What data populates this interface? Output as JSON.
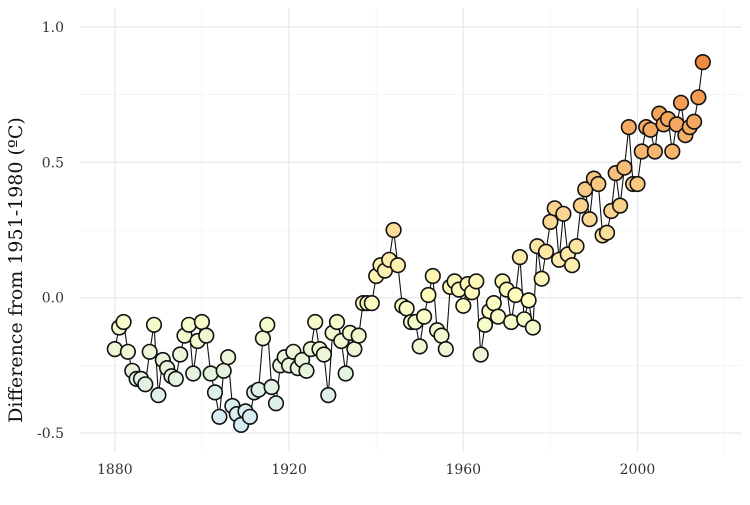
{
  "chart_data": {
    "type": "scatter",
    "connected": true,
    "title": "",
    "xlabel": "",
    "ylabel": "Difference from 1951-1980 (ºC)",
    "xlim": [
      1872,
      2024
    ],
    "ylim": [
      -0.57,
      1.07
    ],
    "x_ticks": [
      1880,
      1920,
      1960,
      2000
    ],
    "y_ticks": [
      -0.5,
      0.0,
      0.5,
      1.0
    ],
    "y_tick_labels": [
      "-0.5",
      "0.0",
      "0.5",
      "1.0"
    ],
    "grid": true,
    "legend": "none",
    "color_scale": {
      "low": "#d4ecf5",
      "mid": "#ffffc0",
      "high": "#f08a3e",
      "domain": [
        -0.47,
        0.0,
        0.87
      ]
    },
    "series": [
      {
        "x": [
          1880,
          1881,
          1882,
          1883,
          1884,
          1885,
          1886,
          1887,
          1888,
          1889,
          1890,
          1891,
          1892,
          1893,
          1894,
          1895,
          1896,
          1897,
          1898,
          1899,
          1900,
          1901,
          1902,
          1903,
          1904,
          1905,
          1906,
          1907,
          1908,
          1909,
          1910,
          1911,
          1912,
          1913,
          1914,
          1915,
          1916,
          1917,
          1918,
          1919,
          1920,
          1921,
          1922,
          1923,
          1924,
          1925,
          1926,
          1927,
          1928,
          1929,
          1930,
          1931,
          1932,
          1933,
          1934,
          1935,
          1936,
          1937,
          1938,
          1939,
          1940,
          1941,
          1942,
          1943,
          1944,
          1945,
          1946,
          1947,
          1948,
          1949,
          1950,
          1951,
          1952,
          1953,
          1954,
          1955,
          1956,
          1957,
          1958,
          1959,
          1960,
          1961,
          1962,
          1963,
          1964,
          1965,
          1966,
          1967,
          1968,
          1969,
          1970,
          1971,
          1972,
          1973,
          1974,
          1975,
          1976,
          1977,
          1978,
          1979,
          1980,
          1981,
          1982,
          1983,
          1984,
          1985,
          1986,
          1987,
          1988,
          1989,
          1990,
          1991,
          1992,
          1993,
          1994,
          1995,
          1996,
          1997,
          1998,
          1999,
          2000,
          2001,
          2002,
          2003,
          2004,
          2005,
          2006,
          2007,
          2008,
          2009,
          2010,
          2011,
          2012,
          2013,
          2014,
          2015
        ],
        "y": [
          -0.19,
          -0.11,
          -0.09,
          -0.2,
          -0.27,
          -0.3,
          -0.3,
          -0.32,
          -0.2,
          -0.1,
          -0.36,
          -0.23,
          -0.26,
          -0.29,
          -0.3,
          -0.21,
          -0.14,
          -0.1,
          -0.28,
          -0.16,
          -0.09,
          -0.14,
          -0.28,
          -0.35,
          -0.44,
          -0.27,
          -0.22,
          -0.4,
          -0.43,
          -0.47,
          -0.42,
          -0.44,
          -0.35,
          -0.34,
          -0.15,
          -0.1,
          -0.33,
          -0.39,
          -0.25,
          -0.22,
          -0.25,
          -0.2,
          -0.26,
          -0.23,
          -0.27,
          -0.19,
          -0.09,
          -0.19,
          -0.21,
          -0.36,
          -0.13,
          -0.09,
          -0.16,
          -0.28,
          -0.13,
          -0.19,
          -0.14,
          -0.02,
          -0.02,
          -0.02,
          0.08,
          0.12,
          0.1,
          0.14,
          0.25,
          0.12,
          -0.03,
          -0.04,
          -0.09,
          -0.09,
          -0.18,
          -0.07,
          0.01,
          0.08,
          -0.12,
          -0.14,
          -0.19,
          0.04,
          0.06,
          0.03,
          -0.03,
          0.05,
          0.02,
          0.06,
          -0.21,
          -0.1,
          -0.05,
          -0.02,
          -0.07,
          0.06,
          0.03,
          -0.09,
          0.01,
          0.15,
          -0.08,
          -0.01,
          -0.11,
          0.19,
          0.07,
          0.17,
          0.28,
          0.33,
          0.14,
          0.31,
          0.16,
          0.12,
          0.19,
          0.34,
          0.4,
          0.29,
          0.44,
          0.42,
          0.23,
          0.24,
          0.32,
          0.46,
          0.34,
          0.48,
          0.63,
          0.42,
          0.42,
          0.54,
          0.63,
          0.62,
          0.54,
          0.68,
          0.64,
          0.66,
          0.54,
          0.64,
          0.72,
          0.6,
          0.63,
          0.65,
          0.74,
          0.87
        ]
      }
    ]
  }
}
